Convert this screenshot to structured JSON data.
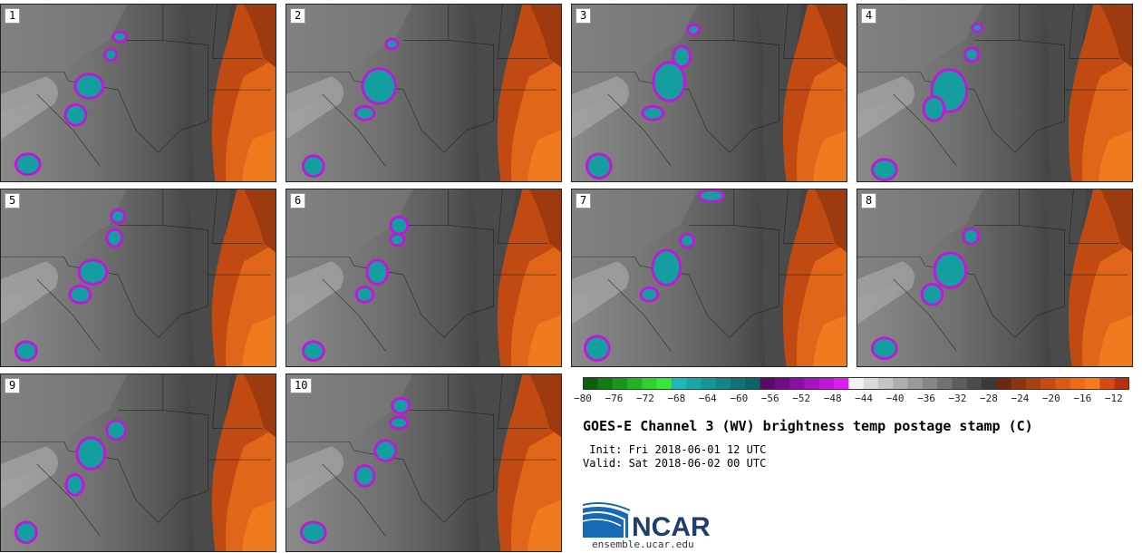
{
  "panels": [
    {
      "label": "1"
    },
    {
      "label": "2"
    },
    {
      "label": "3"
    },
    {
      "label": "4"
    },
    {
      "label": "5"
    },
    {
      "label": "6"
    },
    {
      "label": "7"
    },
    {
      "label": "8"
    },
    {
      "label": "9"
    },
    {
      "label": "10"
    }
  ],
  "colorbar": {
    "ticks": [
      "−80",
      "−76",
      "−72",
      "−68",
      "−64",
      "−60",
      "−56",
      "−52",
      "−48",
      "−44",
      "−40",
      "−36",
      "−32",
      "−28",
      "−24",
      "−20",
      "−16",
      "−12"
    ],
    "range": [
      -80,
      -10
    ],
    "colors": [
      "#0b5e0b",
      "#137a13",
      "#1c951c",
      "#26b026",
      "#2fd02f",
      "#3ae63a",
      "#1fb8b8",
      "#1aa6a8",
      "#169597",
      "#138487",
      "#107476",
      "#0d6466",
      "#5a0a6a",
      "#720c86",
      "#8a10a2",
      "#a414bf",
      "#c018da",
      "#dd1cf0",
      "#f2f2f2",
      "#dadada",
      "#c4c4c4",
      "#aeaeae",
      "#9a9a9a",
      "#868686",
      "#727272",
      "#5e5e5e",
      "#4c4c4c",
      "#3a3a3a",
      "#6a2a10",
      "#8a3510",
      "#a84012",
      "#c44c14",
      "#dc5a16",
      "#ee6a18",
      "#f77a1c",
      "#d44a12",
      "#b83010"
    ]
  },
  "title": "GOES-E Channel 3 (WV) brightness temp postage stamp (C)",
  "init": " Init: Fri 2018-06-01 12 UTC",
  "valid": "Valid: Sat 2018-06-02 00 UTC",
  "logo_text": "NCAR",
  "site": "ensemble.ucar.edu"
}
